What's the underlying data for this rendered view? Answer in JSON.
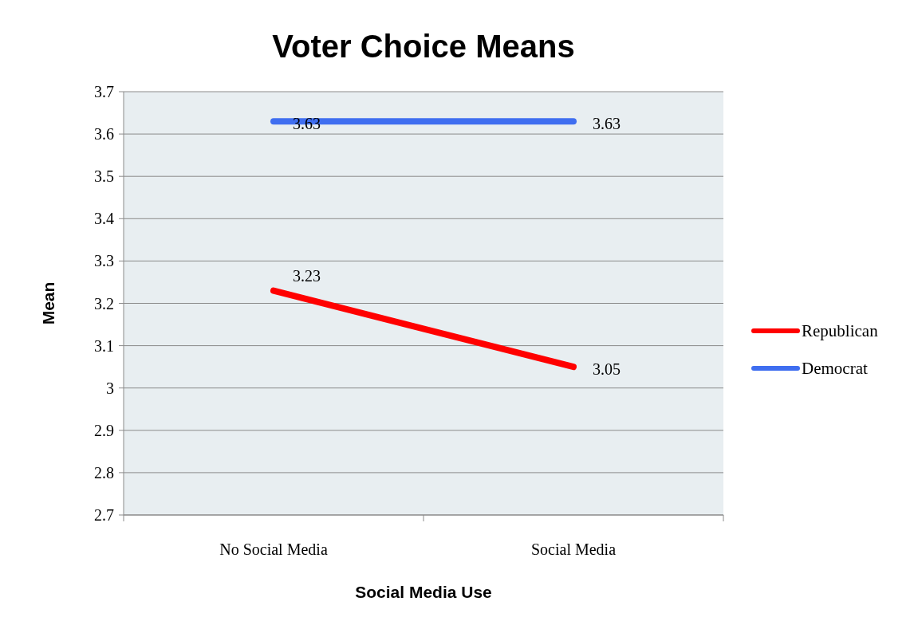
{
  "chart_data": {
    "type": "line",
    "title": "Voter Choice Means",
    "xlabel": "Social Media Use",
    "ylabel": "Mean",
    "categories": [
      "No Social Media",
      "Social Media"
    ],
    "series": [
      {
        "name": "Republican",
        "color": "#ff0000",
        "values": [
          3.23,
          3.05
        ]
      },
      {
        "name": "Democrat",
        "color": "#3f6ef0",
        "values": [
          3.63,
          3.63
        ]
      }
    ],
    "ylim": [
      2.7,
      3.7
    ],
    "yticks": [
      2.7,
      2.8,
      2.9,
      3,
      3.1,
      3.2,
      3.3,
      3.4,
      3.5,
      3.6,
      3.7
    ],
    "grid": "y",
    "legend": "right",
    "data_labels": true,
    "marker": "none",
    "line_style": "solid"
  }
}
